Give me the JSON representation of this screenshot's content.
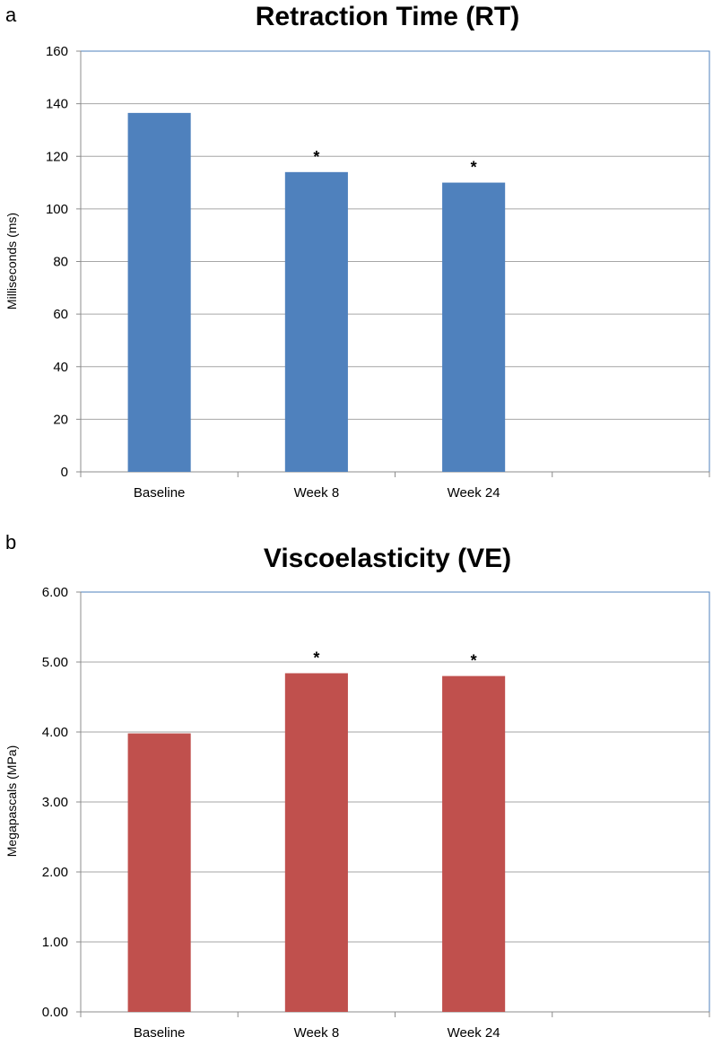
{
  "chart_data": [
    {
      "type": "bar",
      "panel_label": "a",
      "title": "Retraction Time (RT)",
      "xlabel": "",
      "ylabel": "Milliseconds (ms)",
      "categories": [
        "Baseline",
        "Week 8",
        "Week 24",
        ""
      ],
      "values": [
        136.5,
        114,
        110,
        null
      ],
      "annotations": [
        "",
        "*",
        "*",
        ""
      ],
      "ylim": [
        0,
        160
      ],
      "yticks": [
        0,
        20,
        40,
        60,
        80,
        100,
        120,
        140,
        160
      ],
      "ytick_labels": [
        "0",
        "20",
        "40",
        "60",
        "80",
        "100",
        "120",
        "140",
        "160"
      ],
      "grid": true,
      "legend": "none",
      "bar_color": "#4F81BD"
    },
    {
      "type": "bar",
      "panel_label": "b",
      "title": "Viscoelasticity (VE)",
      "xlabel": "",
      "ylabel": "Megapascals (MPa)",
      "categories": [
        "Baseline",
        "Week 8",
        "Week 24",
        ""
      ],
      "values": [
        3.98,
        4.84,
        4.8,
        null
      ],
      "annotations": [
        "",
        "*",
        "*",
        ""
      ],
      "ylim": [
        0,
        6
      ],
      "yticks": [
        0,
        1,
        2,
        3,
        4,
        5,
        6
      ],
      "ytick_labels": [
        "0.00",
        "1.00",
        "2.00",
        "3.00",
        "4.00",
        "5.00",
        "6.00"
      ],
      "grid": true,
      "legend": "none",
      "bar_color": "#C0504D"
    }
  ],
  "colors": {
    "plot_border": "#4F81BD",
    "gridline": "#A6A6A6",
    "axis": "#8C8C8C"
  }
}
